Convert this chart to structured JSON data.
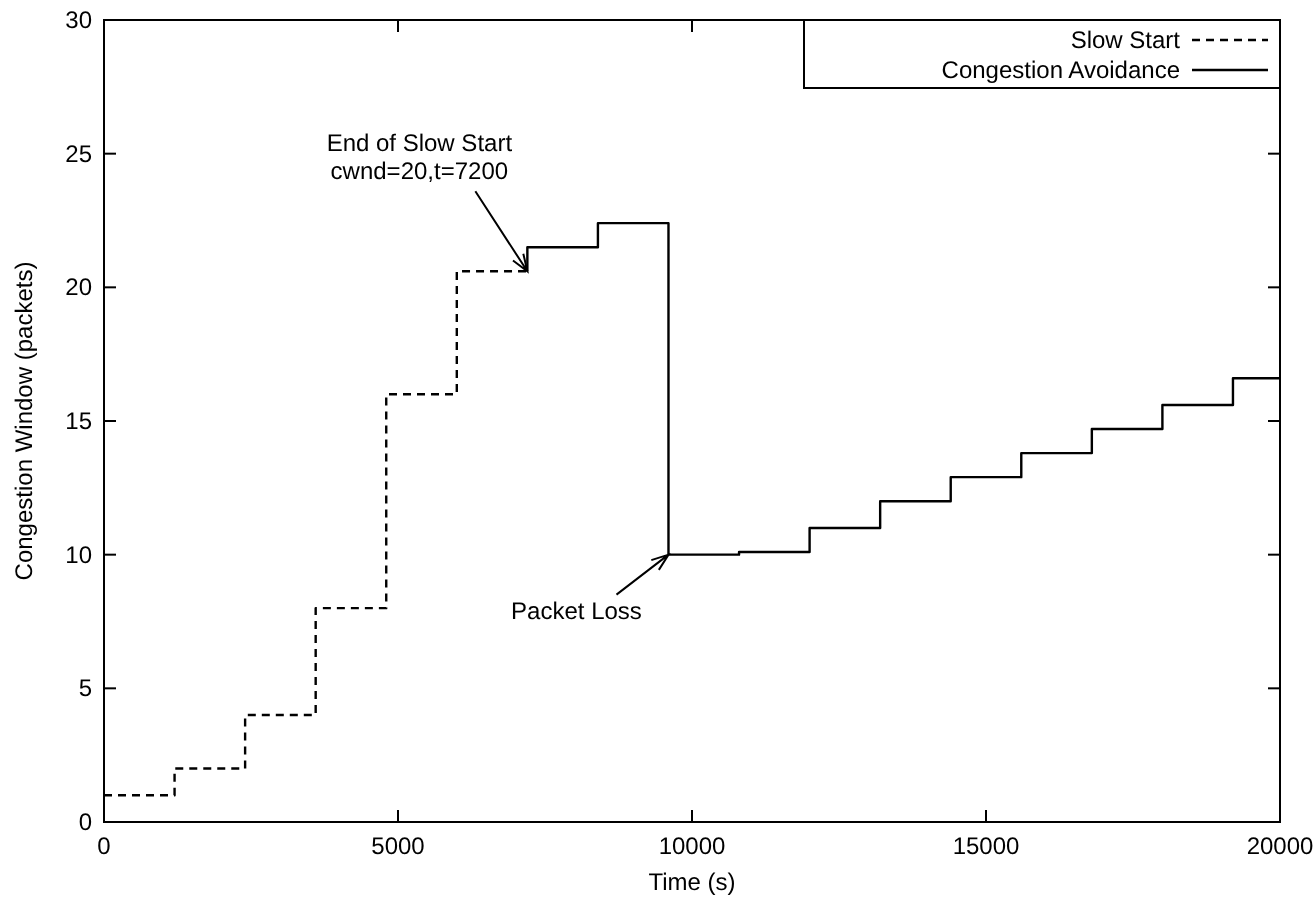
{
  "chart_data": {
    "type": "step",
    "xlabel": "Time (s)",
    "ylabel": "Congestion Window (packets)",
    "xlim": [
      0,
      20000
    ],
    "ylim": [
      0,
      30
    ],
    "xticks": [
      0,
      5000,
      10000,
      15000,
      20000
    ],
    "yticks": [
      0,
      5,
      10,
      15,
      20,
      25,
      30
    ],
    "grid": false,
    "legend": "top right",
    "series": [
      {
        "name": "Slow Start",
        "color": "#000000",
        "line_style": "dashed",
        "x": [
          0,
          1200,
          2400,
          3600,
          4800,
          6000,
          7200
        ],
        "values": [
          1,
          2,
          4,
          8,
          16,
          20.6,
          20.6
        ]
      },
      {
        "name": "Congestion Avoidance",
        "color": "#000000",
        "line_style": "solid",
        "x": [
          7200,
          7200,
          8400,
          9600,
          10800,
          12000,
          13200,
          14400,
          15600,
          16800,
          18000,
          19200,
          20000
        ],
        "values": [
          20.6,
          21.5,
          22.4,
          10,
          10.1,
          11,
          12,
          12.9,
          13.8,
          14.7,
          15.6,
          16.6,
          16.6
        ]
      }
    ],
    "annotations": [
      {
        "text": "End of Slow Start\ncwnd=20,t=7200",
        "x": 7200,
        "y": 20.6
      },
      {
        "text": "Packet Loss",
        "x": 9600,
        "y": 10
      }
    ]
  }
}
